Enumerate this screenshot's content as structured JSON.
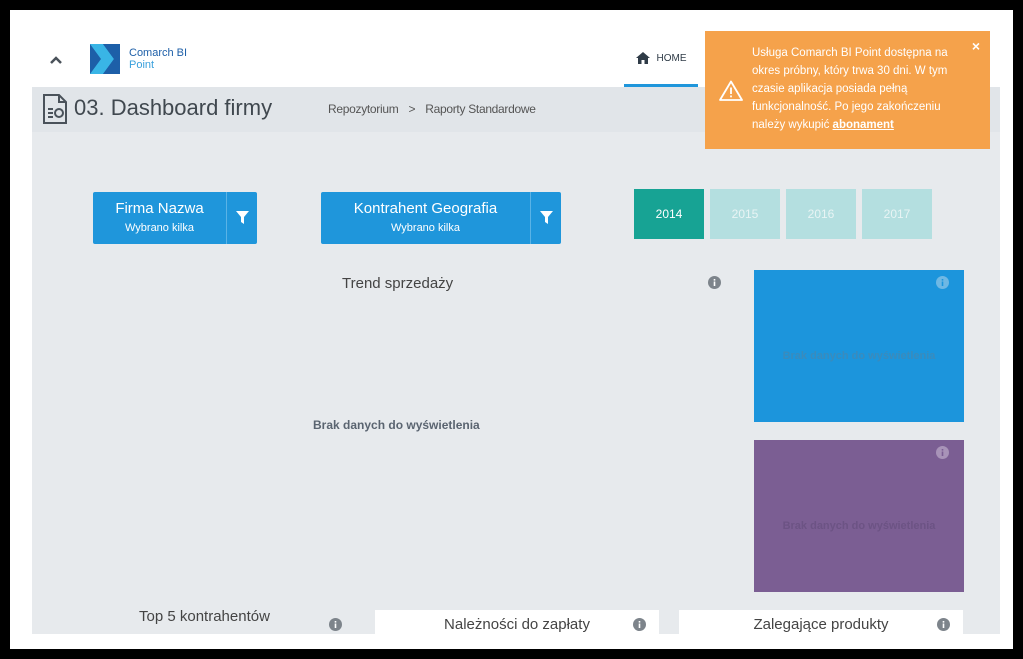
{
  "app": {
    "logo_line1": "Comarch BI",
    "logo_line2": "Point",
    "colors": {
      "primary": "#1f96db",
      "accent_teal": "#17a394",
      "tile_blue": "#1c95dc",
      "tile_purple": "#7b5e93",
      "notification": "#f5a24b"
    }
  },
  "nav": {
    "home_label": "HOME"
  },
  "report": {
    "title": "03. Dashboard firmy",
    "breadcrumb": [
      "Repozytorium",
      "Raporty Standardowe"
    ],
    "breadcrumb_sep": ">"
  },
  "filters": [
    {
      "title": "Firma Nazwa",
      "subtitle": "Wybrano kilka"
    },
    {
      "title": "Kontrahent Geografia",
      "subtitle": "Wybrano kilka"
    }
  ],
  "years": [
    {
      "label": "2014",
      "selected": true
    },
    {
      "label": "2015",
      "selected": false
    },
    {
      "label": "2016",
      "selected": false
    },
    {
      "label": "2017",
      "selected": false
    }
  ],
  "trend": {
    "title": "Trend sprzedaży",
    "no_data": "Brak danych do wyświetlenia"
  },
  "tiles": [
    {
      "no_data": "Brak danych do wyświetlenia"
    },
    {
      "no_data": "Brak danych do wyświetlenia"
    }
  ],
  "bottom": {
    "top5_title": "Top 5 kontrahentów",
    "receivables_title": "Należności do zapłaty",
    "stale_products_title": "Zalegające produkty"
  },
  "notification": {
    "text": "Usługa Comarch BI Point dostępna na okres próbny, który trwa 30 dni. W tym czasie aplikacja posiada pełną funkcjonalność. Po jego zakończeniu należy wykupić",
    "link_label": "abonament",
    "close_label": "×"
  }
}
